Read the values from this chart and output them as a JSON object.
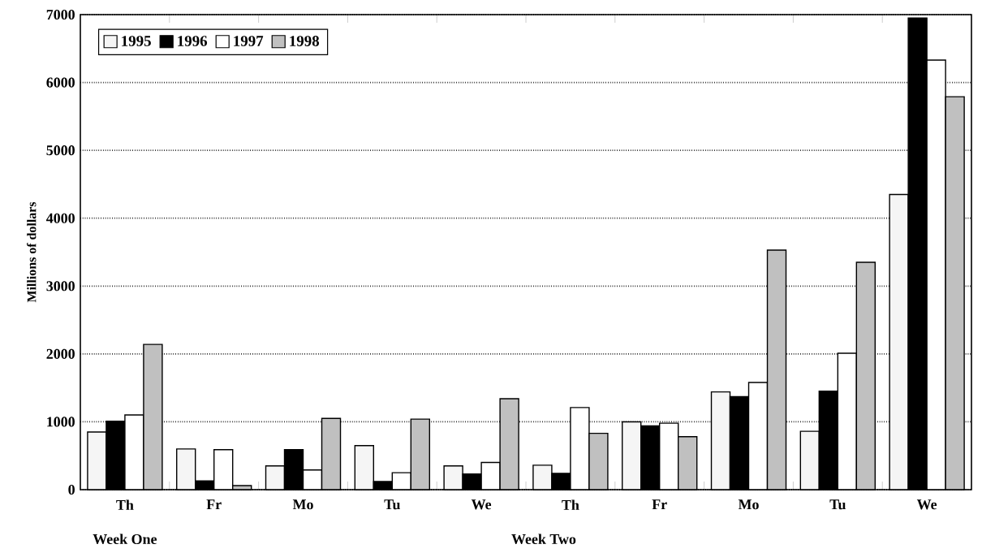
{
  "chart_data": {
    "type": "bar",
    "ylabel": "Millions of dollars",
    "categories": [
      "Th",
      "Fr",
      "Mo",
      "Tu",
      "We",
      "Th",
      "Fr",
      "Mo",
      "Tu",
      "We"
    ],
    "series": [
      {
        "name": "1995",
        "color": "#f5f5f5",
        "values": [
          850,
          600,
          350,
          650,
          350,
          360,
          1000,
          1440,
          860,
          4350
        ]
      },
      {
        "name": "1996",
        "color": "#000000",
        "values": [
          1010,
          130,
          590,
          120,
          230,
          240,
          940,
          1370,
          1450,
          6950
        ]
      },
      {
        "name": "1997",
        "color": "#ffffff",
        "values": [
          1100,
          590,
          290,
          250,
          400,
          1210,
          980,
          1580,
          2010,
          6330
        ]
      },
      {
        "name": "1998",
        "color": "#c0c0c0",
        "values": [
          2140,
          60,
          1050,
          1040,
          1340,
          830,
          780,
          3530,
          3350,
          5790
        ]
      }
    ],
    "ylim": [
      0,
      7000
    ],
    "yticks": [
      0,
      1000,
      2000,
      3000,
      4000,
      5000,
      6000,
      7000
    ],
    "grid": "y",
    "legend": "top left",
    "annotations": [
      "Week One",
      "Week Two"
    ]
  }
}
